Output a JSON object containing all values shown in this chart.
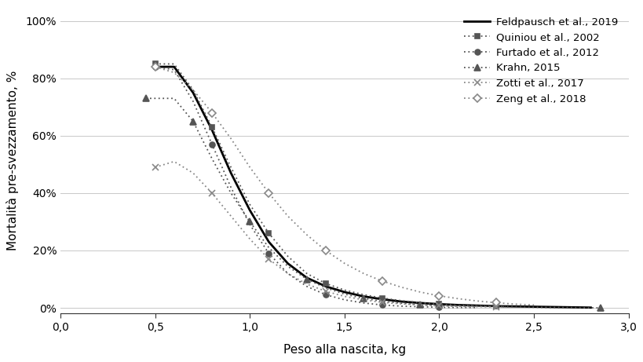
{
  "title": "",
  "xlabel": "Peso alla nascita, kg",
  "ylabel": "Mortalità pre-svezzamento, %",
  "xlim": [
    0.0,
    3.0
  ],
  "ylim": [
    -0.02,
    1.05
  ],
  "xticks": [
    0.0,
    0.5,
    1.0,
    1.5,
    2.0,
    2.5,
    3.0
  ],
  "yticks": [
    0.0,
    0.2,
    0.4,
    0.6,
    0.8,
    1.0
  ],
  "xtick_labels": [
    "0,0",
    "0,5",
    "1,0",
    "1,5",
    "2,0",
    "2,5",
    "3,0"
  ],
  "ytick_labels": [
    "0%",
    "20%",
    "40%",
    "60%",
    "80%",
    "100%"
  ],
  "background_color": "#ffffff",
  "grid_color": "#c8c8c8",
  "series": [
    {
      "label": "Feldpausch et al., 2019",
      "x": [
        0.5,
        0.6,
        0.7,
        0.8,
        0.9,
        1.0,
        1.1,
        1.2,
        1.3,
        1.4,
        1.5,
        1.6,
        1.7,
        1.8,
        1.9,
        2.0,
        2.1,
        2.2,
        2.3,
        2.4,
        2.5,
        2.6,
        2.7,
        2.8
      ],
      "y": [
        0.84,
        0.84,
        0.75,
        0.62,
        0.47,
        0.34,
        0.23,
        0.155,
        0.105,
        0.075,
        0.055,
        0.04,
        0.03,
        0.022,
        0.017,
        0.013,
        0.01,
        0.008,
        0.006,
        0.005,
        0.004,
        0.003,
        0.002,
        0.001
      ],
      "color": "#000000",
      "linestyle": "solid",
      "linewidth": 2.0,
      "marker": "none",
      "markersize": 0
    },
    {
      "label": "Quiniou et al., 2002",
      "x": [
        0.5,
        0.6,
        0.7,
        0.8,
        0.9,
        1.0,
        1.1,
        1.2,
        1.3,
        1.4,
        1.5,
        1.6,
        1.7,
        1.8,
        1.9,
        2.0,
        2.1,
        2.2,
        2.3,
        2.35
      ],
      "y": [
        0.85,
        0.85,
        0.76,
        0.63,
        0.49,
        0.36,
        0.26,
        0.18,
        0.12,
        0.085,
        0.062,
        0.046,
        0.034,
        0.025,
        0.018,
        0.013,
        0.009,
        0.007,
        0.005,
        0.004
      ],
      "color": "#555555",
      "linestyle": "dotted",
      "linewidth": 1.3,
      "marker": "s",
      "markersize": 5,
      "markerfacecolor": "#555555",
      "markeredgecolor": "#555555",
      "markevery": [
        0,
        3,
        6,
        9,
        12,
        15,
        18
      ]
    },
    {
      "label": "Furtado et al., 2012",
      "x": [
        0.5,
        0.6,
        0.7,
        0.8,
        0.9,
        1.0,
        1.1,
        1.2,
        1.3,
        1.4,
        1.5,
        1.6,
        1.7,
        1.8,
        1.9,
        2.0,
        2.1,
        2.2
      ],
      "y": [
        0.84,
        0.83,
        0.72,
        0.57,
        0.42,
        0.29,
        0.19,
        0.12,
        0.075,
        0.046,
        0.028,
        0.017,
        0.01,
        0.006,
        0.004,
        0.002,
        0.001,
        0.001
      ],
      "color": "#555555",
      "linestyle": "dotted",
      "linewidth": 1.3,
      "marker": "o",
      "markersize": 5,
      "markerfacecolor": "#555555",
      "markeredgecolor": "#555555",
      "markevery": [
        0,
        3,
        6,
        9,
        12,
        15
      ]
    },
    {
      "label": "Krahn, 2015",
      "x": [
        0.45,
        0.5,
        0.6,
        0.7,
        0.8,
        0.9,
        1.0,
        1.1,
        1.2,
        1.3,
        1.4,
        1.5,
        1.6,
        1.7,
        1.8,
        1.9,
        2.0,
        2.5,
        2.85
      ],
      "y": [
        0.73,
        0.73,
        0.73,
        0.65,
        0.52,
        0.4,
        0.3,
        0.21,
        0.145,
        0.1,
        0.07,
        0.048,
        0.033,
        0.023,
        0.016,
        0.011,
        0.008,
        0.002,
        0.0
      ],
      "color": "#555555",
      "linestyle": "dotted",
      "linewidth": 1.3,
      "marker": "^",
      "markersize": 6,
      "markerfacecolor": "#555555",
      "markeredgecolor": "#555555",
      "markevery": [
        0,
        3,
        6,
        9,
        12,
        15,
        18
      ]
    },
    {
      "label": "Zotti et al., 2017",
      "x": [
        0.5,
        0.6,
        0.7,
        0.8,
        0.9,
        1.0,
        1.1,
        1.2,
        1.3,
        1.4,
        1.5,
        1.6,
        1.7,
        1.8,
        1.9,
        2.0,
        2.1,
        2.2,
        2.3
      ],
      "y": [
        0.49,
        0.51,
        0.47,
        0.4,
        0.32,
        0.24,
        0.17,
        0.12,
        0.083,
        0.058,
        0.04,
        0.028,
        0.019,
        0.014,
        0.01,
        0.007,
        0.005,
        0.004,
        0.003
      ],
      "color": "#888888",
      "linestyle": "dotted",
      "linewidth": 1.3,
      "marker": "x",
      "markersize": 6,
      "markerfacecolor": "#888888",
      "markeredgecolor": "#888888",
      "markevery": [
        0,
        3,
        6,
        9,
        12,
        15,
        18
      ]
    },
    {
      "label": "Zeng et al., 2018",
      "x": [
        0.5,
        0.6,
        0.7,
        0.8,
        0.9,
        1.0,
        1.1,
        1.2,
        1.3,
        1.4,
        1.5,
        1.6,
        1.7,
        1.8,
        1.9,
        2.0,
        2.1,
        2.2,
        2.3,
        2.4,
        2.5
      ],
      "y": [
        0.84,
        0.82,
        0.76,
        0.68,
        0.59,
        0.49,
        0.4,
        0.32,
        0.255,
        0.2,
        0.155,
        0.12,
        0.093,
        0.072,
        0.055,
        0.042,
        0.032,
        0.024,
        0.018,
        0.013,
        0.01
      ],
      "color": "#888888",
      "linestyle": "dotted",
      "linewidth": 1.3,
      "marker": "D",
      "markersize": 5,
      "markerfacecolor": "#ffffff",
      "markeredgecolor": "#888888",
      "markevery": [
        0,
        3,
        6,
        9,
        12,
        15,
        18
      ]
    }
  ]
}
